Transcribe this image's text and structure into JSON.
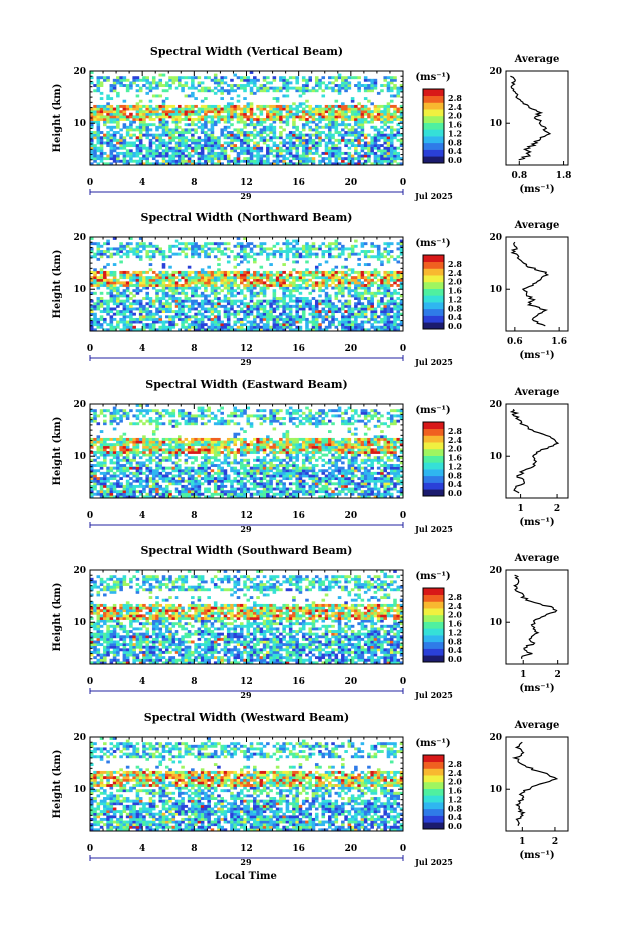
{
  "figure": {
    "xlabel": "Local Time",
    "ylabel": "Height (km)",
    "unit_label": "(ms⁻¹)",
    "date_label": "Jul 2025",
    "day_label": "29",
    "average_title": "Average",
    "colorbar_ticks": [
      "0.0",
      "0.4",
      "0.8",
      "1.2",
      "1.6",
      "2.0",
      "2.4",
      "2.8"
    ],
    "colorbar_range": [
      0.0,
      3.0
    ],
    "colorbar_colors": [
      "#1b1b6e",
      "#2a40d8",
      "#2f7be8",
      "#2fb6f0",
      "#35e0d8",
      "#4ff0a0",
      "#9ff560",
      "#f0f040",
      "#f8b830",
      "#f06020",
      "#d81818"
    ]
  },
  "chart_data": [
    {
      "type": "heatmap",
      "title": "Spectral Width (Vertical Beam)",
      "x_ticks": [
        "0",
        "4",
        "8",
        "12",
        "16",
        "20",
        "0"
      ],
      "y_ticks": [
        "20",
        "10"
      ],
      "xlim": [
        0,
        24
      ],
      "ylim": [
        2,
        20
      ],
      "avg_xticks": [
        "0.8",
        "1.8"
      ],
      "avg_xlim": [
        0.5,
        1.9
      ],
      "average_profile": {
        "height": [
          3,
          4,
          5,
          6,
          7,
          8,
          9,
          10,
          11,
          12,
          13,
          14,
          15,
          16,
          17,
          18,
          19
        ],
        "value": [
          0.8,
          1.05,
          0.95,
          1.15,
          1.25,
          1.45,
          1.35,
          1.3,
          1.2,
          1.25,
          1.0,
          0.85,
          0.75,
          0.72,
          0.62,
          0.68,
          0.6
        ]
      }
    },
    {
      "type": "heatmap",
      "title": "Spectral Width (Northward Beam)",
      "x_ticks": [
        "0",
        "4",
        "8",
        "12",
        "16",
        "20",
        "0"
      ],
      "y_ticks": [
        "20",
        "10"
      ],
      "xlim": [
        0,
        24
      ],
      "ylim": [
        2,
        20
      ],
      "avg_xticks": [
        "0.6",
        "1.6"
      ],
      "avg_xlim": [
        0.4,
        1.8
      ],
      "average_profile": {
        "height": [
          3,
          4,
          5,
          6,
          7,
          8,
          9,
          10,
          11,
          12,
          13,
          14,
          15,
          16,
          17,
          18,
          19
        ],
        "value": [
          1.3,
          1.0,
          1.1,
          1.25,
          0.95,
          1.0,
          0.85,
          0.8,
          1.0,
          1.2,
          1.35,
          1.0,
          0.8,
          0.65,
          0.6,
          0.6,
          0.6
        ]
      }
    },
    {
      "type": "heatmap",
      "title": "Spectral Width (Eastward Beam)",
      "x_ticks": [
        "0",
        "4",
        "8",
        "12",
        "16",
        "20",
        "0"
      ],
      "y_ticks": [
        "20",
        "10"
      ],
      "xlim": [
        0,
        24
      ],
      "ylim": [
        2,
        20
      ],
      "avg_xticks": [
        "1",
        "2"
      ],
      "avg_xlim": [
        0.6,
        2.3
      ],
      "average_profile": {
        "height": [
          3,
          4,
          5,
          6,
          7,
          8,
          9,
          10,
          11,
          12,
          13,
          14,
          15,
          16,
          17,
          18,
          19
        ],
        "value": [
          0.9,
          0.85,
          1.1,
          0.95,
          1.05,
          1.3,
          1.45,
          1.35,
          1.55,
          1.9,
          2.0,
          1.7,
          1.3,
          1.1,
          0.9,
          0.85,
          0.8
        ]
      }
    },
    {
      "type": "heatmap",
      "title": "Spectral Width (Southward Beam)",
      "x_ticks": [
        "0",
        "4",
        "8",
        "12",
        "16",
        "20",
        "0"
      ],
      "y_ticks": [
        "20",
        "10"
      ],
      "xlim": [
        0,
        24
      ],
      "ylim": [
        2,
        20
      ],
      "avg_xticks": [
        "1",
        "2"
      ],
      "avg_xlim": [
        0.5,
        2.3
      ],
      "average_profile": {
        "height": [
          3,
          4,
          5,
          6,
          7,
          8,
          9,
          10,
          11,
          12,
          13,
          14,
          15,
          16,
          17,
          18,
          19
        ],
        "value": [
          0.9,
          1.2,
          1.05,
          1.3,
          1.2,
          1.4,
          1.3,
          1.25,
          1.55,
          1.95,
          1.75,
          1.2,
          0.95,
          0.85,
          0.8,
          0.9,
          0.75
        ]
      }
    },
    {
      "type": "heatmap",
      "title": "Spectral Width (Westward Beam)",
      "x_ticks": [
        "0",
        "4",
        "8",
        "12",
        "16",
        "20",
        "0"
      ],
      "y_ticks": [
        "20",
        "10"
      ],
      "xlim": [
        0,
        24
      ],
      "ylim": [
        2,
        20
      ],
      "avg_xticks": [
        "1",
        "2"
      ],
      "avg_xlim": [
        0.5,
        2.4
      ],
      "average_profile": {
        "height": [
          3,
          4,
          5,
          6,
          7,
          8,
          9,
          10,
          11,
          12,
          13,
          14,
          15,
          16,
          17,
          18,
          19
        ],
        "value": [
          0.9,
          0.85,
          1.0,
          0.95,
          0.9,
          0.95,
          1.0,
          1.15,
          1.55,
          2.0,
          1.7,
          1.25,
          0.95,
          0.8,
          1.1,
          0.9,
          1.0
        ]
      }
    }
  ]
}
